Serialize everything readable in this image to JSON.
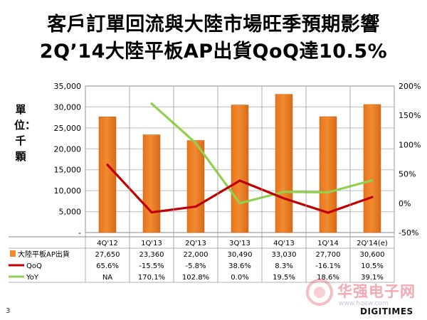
{
  "title": {
    "line1": "客戶訂單回流與大陸市場旺季預期影響",
    "line2": "2Q’14大陸平板AP出貨QoQ達10.5%"
  },
  "page_number": "3",
  "watermark": {
    "text": "华强电子网",
    "url": "www.hqew.com"
  },
  "brand": "DIGITIMES",
  "colors": {
    "bar": "#F28B30",
    "qoq_line": "#C00000",
    "yoy_line": "#92D050"
  },
  "chart_data": {
    "type": "bar",
    "ylabel": "單位：千顆",
    "categories": [
      "4Q'12",
      "1Q'13",
      "2Q'13",
      "3Q'13",
      "4Q'13",
      "1Q'14",
      "2Q'14(e)"
    ],
    "left_axis": {
      "min": 0,
      "max": 35000,
      "step": 5000,
      "tick_labels": [
        "-",
        "5,000",
        "10,000",
        "15,000",
        "20,000",
        "25,000",
        "30,000",
        "35,000"
      ]
    },
    "right_axis": {
      "min": -50,
      "max": 200,
      "step": 50,
      "unit": "%",
      "tick_labels": [
        "-50%",
        "0%",
        "50%",
        "100%",
        "150%",
        "200%"
      ]
    },
    "grid": true,
    "legend": "data table below chart",
    "series": [
      {
        "name": "大陸平板AP出貨",
        "type": "bar",
        "axis": "left",
        "values": [
          27650,
          23360,
          22000,
          30490,
          33030,
          27700,
          30600
        ],
        "labels": [
          "27,650",
          "23,360",
          "22,000",
          "30,490",
          "33,030",
          "27,700",
          "30,600"
        ]
      },
      {
        "name": "QoQ",
        "type": "line",
        "axis": "right",
        "values": [
          65.6,
          -15.5,
          -5.8,
          38.6,
          8.3,
          -16.1,
          10.5
        ],
        "labels": [
          "65.6%",
          "-15.5%",
          "-5.8%",
          "38.6%",
          "8.3%",
          "-16.1%",
          "10.5%"
        ]
      },
      {
        "name": "YoY",
        "type": "line",
        "axis": "right",
        "values": [
          null,
          170.1,
          102.8,
          0.0,
          19.5,
          18.6,
          39.1
        ],
        "labels": [
          "NA",
          "170.1%",
          "102.8%",
          "0.0%",
          "19.5%",
          "18.6%",
          "39.1%"
        ]
      }
    ]
  }
}
